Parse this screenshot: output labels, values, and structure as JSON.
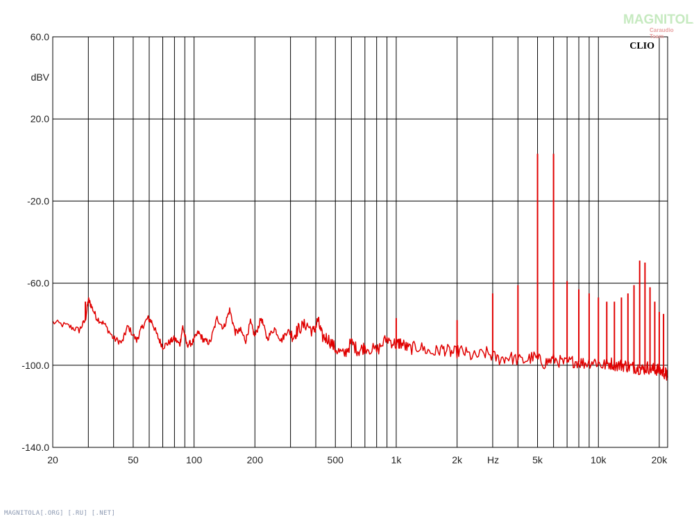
{
  "brand": {
    "logo_text": "MAGNITOLA",
    "logo_subtext": "Caraudio Team",
    "footer": "MAGNITOLA[.ORG] [.RU] [.NET]",
    "accent_color": "#e00000"
  },
  "chart_data": {
    "type": "line",
    "title": "",
    "watermark": "CLIO",
    "xlabel": "Hz",
    "ylabel": "dBV",
    "xscale": "log",
    "xlim": [
      20,
      22000
    ],
    "ylim": [
      -140,
      60
    ],
    "grid": true,
    "x_ticks": [
      {
        "value": 20,
        "label": "20"
      },
      {
        "value": 50,
        "label": "50"
      },
      {
        "value": 100,
        "label": "100"
      },
      {
        "value": 200,
        "label": "200"
      },
      {
        "value": 500,
        "label": "500"
      },
      {
        "value": 1000,
        "label": "1k"
      },
      {
        "value": 2000,
        "label": "2k"
      },
      {
        "value": 5000,
        "label": "5k"
      },
      {
        "value": 10000,
        "label": "10k"
      },
      {
        "value": 20000,
        "label": "20k"
      }
    ],
    "y_ticks": [
      {
        "value": 60,
        "label": "60.0"
      },
      {
        "value": 20,
        "label": "20.0"
      },
      {
        "value": -20,
        "label": "-20.0"
      },
      {
        "value": -60,
        "label": "-60.0"
      },
      {
        "value": -100,
        "label": "-100.0"
      },
      {
        "value": -140,
        "label": "-140.0"
      }
    ],
    "series": [
      {
        "color": "#e00000",
        "x": [
          20,
          24,
          27,
          29,
          30,
          31,
          33,
          36,
          40,
          44,
          47,
          52,
          55,
          59,
          62,
          66,
          70,
          75,
          80,
          85,
          88,
          92,
          98,
          105,
          112,
          120,
          130,
          140,
          150,
          160,
          170,
          180,
          190,
          200,
          215,
          230,
          250,
          270,
          290,
          310,
          330,
          360,
          390,
          410,
          430,
          460,
          500,
          550,
          600,
          650,
          700,
          800,
          900,
          1000,
          1050,
          1150,
          1300,
          1500,
          1700,
          1900,
          2100,
          2400,
          2800,
          3200,
          3600,
          4200,
          4800,
          5400,
          6000,
          6800,
          7600,
          8500,
          9500,
          10500,
          11500,
          12500,
          13500,
          14500,
          15500,
          16500,
          17500,
          18500,
          19500,
          20500,
          21500,
          22000
        ],
        "y": [
          -79,
          -81,
          -83,
          -78,
          -68,
          -71,
          -77,
          -80,
          -87,
          -89,
          -81,
          -88,
          -82,
          -77,
          -79,
          -86,
          -91,
          -89,
          -87,
          -90,
          -81,
          -90,
          -89,
          -84,
          -88,
          -89,
          -77,
          -82,
          -73,
          -84,
          -83,
          -88,
          -79,
          -86,
          -77,
          -87,
          -82,
          -88,
          -83,
          -86,
          -82,
          -80,
          -84,
          -78,
          -86,
          -87,
          -92,
          -95,
          -89,
          -93,
          -91,
          -93,
          -87,
          -90,
          -89,
          -92,
          -91,
          -94,
          -92,
          -94,
          -93,
          -96,
          -94,
          -97,
          -96,
          -98,
          -96,
          -99,
          -97,
          -99,
          -98,
          -99,
          -98,
          -100,
          -99,
          -100,
          -100,
          -101,
          -101,
          -102,
          -101,
          -102,
          -102,
          -103,
          -104,
          -106
        ]
      }
    ],
    "spikes": [
      {
        "x": 29,
        "y": -69
      },
      {
        "x": 1000,
        "y": -77
      },
      {
        "x": 2000,
        "y": -78
      },
      {
        "x": 3000,
        "y": -65
      },
      {
        "x": 4000,
        "y": -61
      },
      {
        "x": 5000,
        "y": 3
      },
      {
        "x": 6000,
        "y": 3
      },
      {
        "x": 7000,
        "y": -59
      },
      {
        "x": 8000,
        "y": -63
      },
      {
        "x": 9000,
        "y": -65
      },
      {
        "x": 10000,
        "y": -67
      },
      {
        "x": 11000,
        "y": -69
      },
      {
        "x": 12000,
        "y": -69
      },
      {
        "x": 13000,
        "y": -67
      },
      {
        "x": 14000,
        "y": -65
      },
      {
        "x": 15000,
        "y": -61
      },
      {
        "x": 16000,
        "y": -49
      },
      {
        "x": 17000,
        "y": -50
      },
      {
        "x": 18000,
        "y": -62
      },
      {
        "x": 19000,
        "y": -69
      },
      {
        "x": 20000,
        "y": -74
      },
      {
        "x": 21000,
        "y": -75
      }
    ]
  }
}
